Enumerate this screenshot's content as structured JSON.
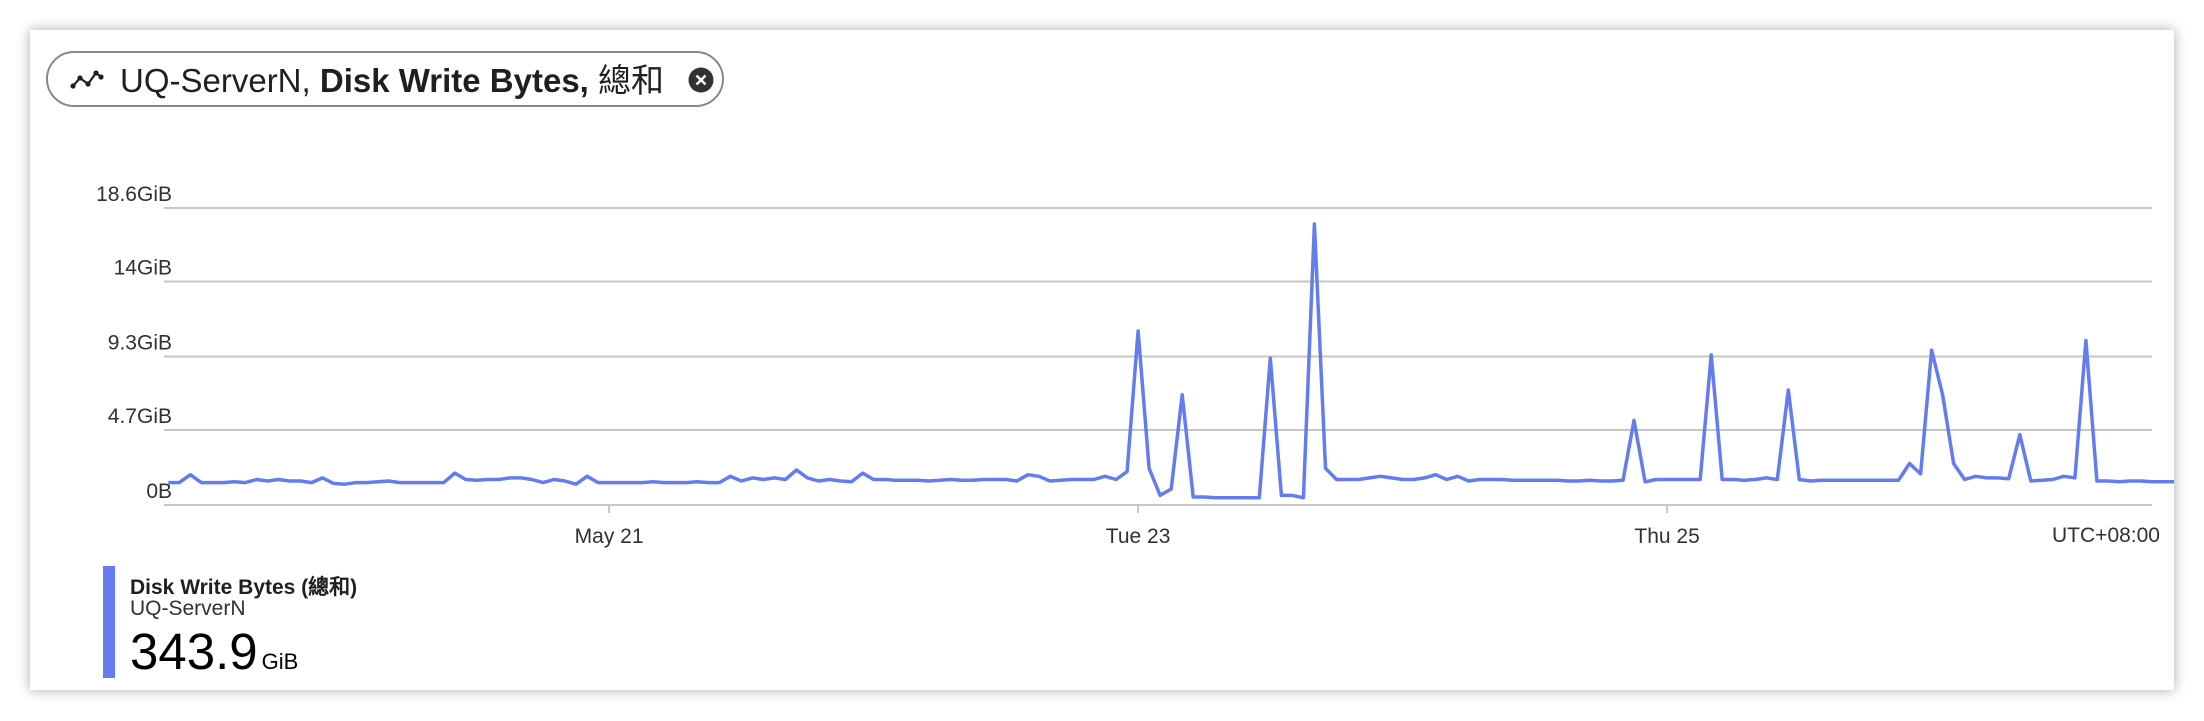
{
  "tile": {
    "resource": "UQ-ServerN,",
    "metric": "Disk Write Bytes,",
    "aggregation": "總和"
  },
  "legend": {
    "name": "Disk Write Bytes (總和)",
    "resource": "UQ-ServerN",
    "value": "343.9",
    "unit": "GiB",
    "color": "#637cef"
  },
  "chart_data": {
    "type": "line",
    "title": "",
    "xlabel": "",
    "ylabel": "",
    "timezone": "UTC+08:00",
    "x_range": [
      "2019-05-19T07:04",
      "2019-05-26T20:00"
    ],
    "x_ticks": [
      {
        "label": "May 21",
        "time": "2019-05-21T00:00"
      },
      {
        "label": "Tue 23",
        "time": "2019-05-23T00:00"
      },
      {
        "label": "Thu 25",
        "time": "2019-05-25T00:00"
      }
    ],
    "y_ticks": [
      {
        "label": "0B",
        "value": 0
      },
      {
        "label": "4.7GiB",
        "value": 4.7
      },
      {
        "label": "9.3GiB",
        "value": 9.3
      },
      {
        "label": "14GiB",
        "value": 14
      },
      {
        "label": "18.6GiB",
        "value": 18.6
      }
    ],
    "ylim": [
      0,
      18.6
    ],
    "y_unit": "GiB",
    "grid": true,
    "series": [
      {
        "name": "Disk Write Bytes (總和)",
        "color": "#637cef",
        "start": "2019-05-19T08:00",
        "interval_hours": 1,
        "values": [
          1.4,
          1.4,
          1.9,
          1.4,
          1.4,
          1.4,
          1.45,
          1.4,
          1.6,
          1.5,
          1.6,
          1.5,
          1.5,
          1.4,
          1.7,
          1.35,
          1.3,
          1.4,
          1.4,
          1.45,
          1.5,
          1.4,
          1.4,
          1.4,
          1.4,
          1.4,
          2.0,
          1.6,
          1.55,
          1.6,
          1.6,
          1.7,
          1.7,
          1.6,
          1.4,
          1.6,
          1.5,
          1.3,
          1.8,
          1.4,
          1.4,
          1.4,
          1.4,
          1.4,
          1.45,
          1.4,
          1.4,
          1.4,
          1.45,
          1.4,
          1.4,
          1.8,
          1.5,
          1.7,
          1.6,
          1.7,
          1.6,
          2.2,
          1.7,
          1.5,
          1.6,
          1.5,
          1.45,
          2.0,
          1.6,
          1.6,
          1.55,
          1.55,
          1.55,
          1.5,
          1.55,
          1.6,
          1.55,
          1.55,
          1.6,
          1.6,
          1.6,
          1.5,
          1.9,
          1.8,
          1.5,
          1.55,
          1.6,
          1.6,
          1.6,
          1.8,
          1.6,
          2.1,
          10.9,
          2.3,
          0.6,
          1.0,
          6.9,
          0.5,
          0.5,
          0.45,
          0.45,
          0.45,
          0.45,
          0.45,
          9.2,
          0.6,
          0.6,
          0.45,
          17.6,
          2.3,
          1.6,
          1.6,
          1.6,
          1.7,
          1.8,
          1.7,
          1.6,
          1.6,
          1.7,
          1.9,
          1.6,
          1.8,
          1.5,
          1.6,
          1.6,
          1.6,
          1.55,
          1.55,
          1.55,
          1.55,
          1.55,
          1.5,
          1.5,
          1.55,
          1.5,
          1.5,
          1.55,
          5.3,
          1.45,
          1.6,
          1.6,
          1.6,
          1.6,
          1.6,
          9.4,
          1.6,
          1.6,
          1.55,
          1.6,
          1.7,
          1.6,
          7.2,
          1.6,
          1.5,
          1.55,
          1.55,
          1.55,
          1.55,
          1.55,
          1.55,
          1.55,
          1.55,
          2.6,
          1.95,
          9.7,
          6.9,
          2.6,
          1.6,
          1.8,
          1.7,
          1.7,
          1.65,
          4.4,
          1.5,
          1.55,
          1.6,
          1.8,
          1.7,
          10.3,
          1.5,
          1.5,
          1.45,
          1.5,
          1.5,
          1.45,
          1.45,
          1.45,
          1.5
        ]
      }
    ]
  }
}
